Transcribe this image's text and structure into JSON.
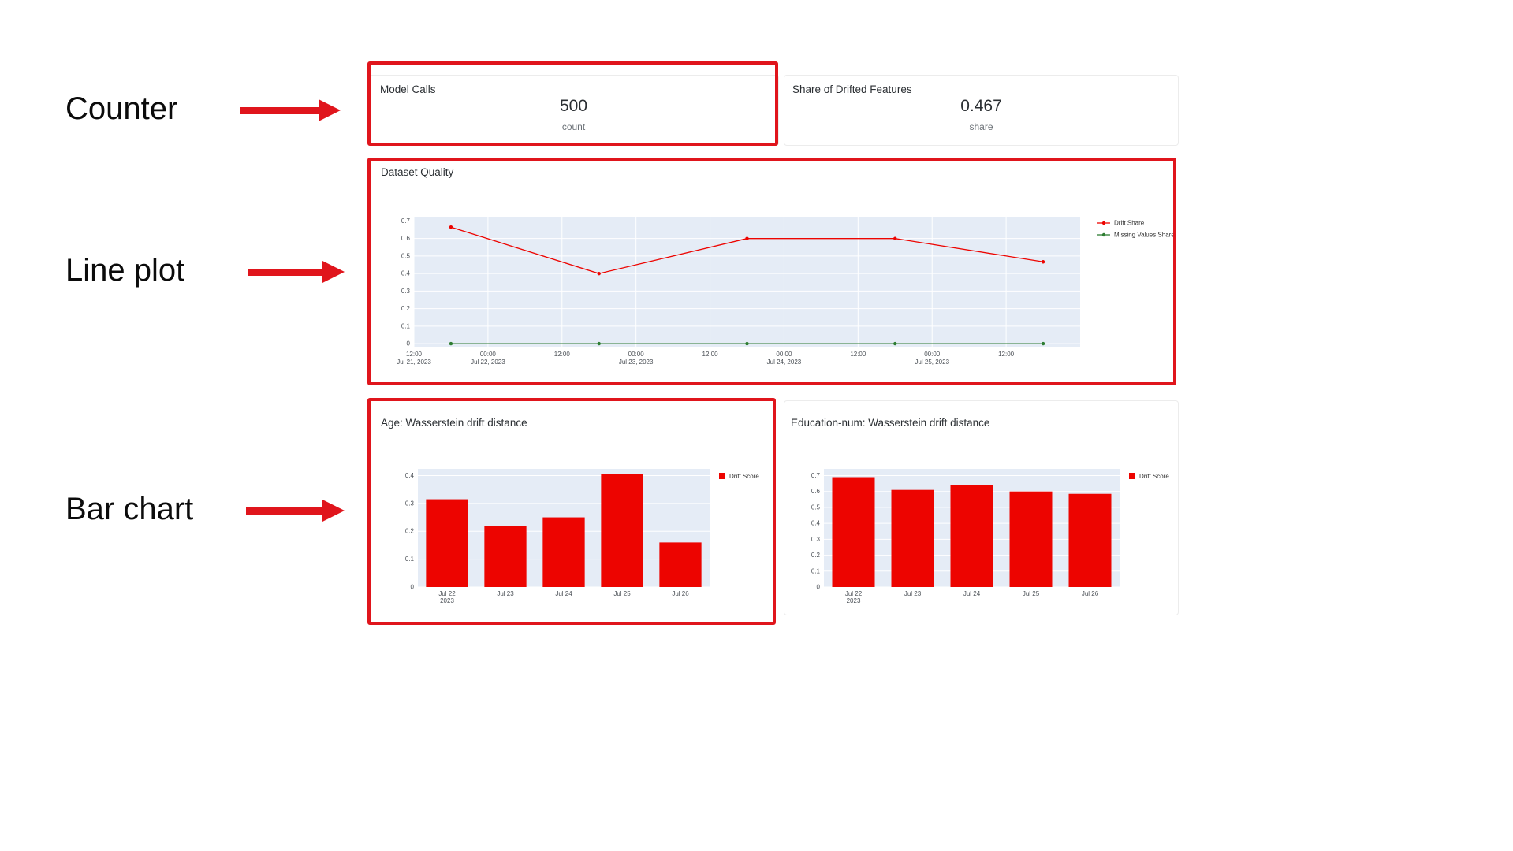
{
  "annotations": {
    "color": "#e0151c",
    "labels": [
      {
        "text": "Counter"
      },
      {
        "text": "Line plot"
      },
      {
        "text": "Bar chart"
      }
    ]
  },
  "counters": [
    {
      "title": "Model Calls",
      "value": "500",
      "unit": "count"
    },
    {
      "title": "Share of Drifted Features",
      "value": "0.467",
      "unit": "share"
    }
  ],
  "chart_data": [
    {
      "type": "line",
      "title": "Dataset Quality",
      "plot_bg": "#e5ecf6",
      "grid": true,
      "legend_position": "right",
      "x_range": [
        0,
        9
      ],
      "x_tick_positions": [
        0,
        1,
        2,
        3,
        4,
        5,
        6,
        7,
        8
      ],
      "x_tick_labels": [
        "12:00|Jul 21, 2023",
        "00:00|Jul 22, 2023",
        "12:00",
        "00:00|Jul 23, 2023",
        "12:00",
        "00:00|Jul 24, 2023",
        "12:00",
        "00:00|Jul 25, 2023",
        "12:00"
      ],
      "y_ticks": [
        0,
        0.1,
        0.2,
        0.3,
        0.4,
        0.5,
        0.6,
        0.7
      ],
      "ylim": [
        0,
        0.7
      ],
      "series": [
        {
          "name": "Drift Share",
          "color": "#ed0400",
          "x": [
            0.5,
            2.5,
            4.5,
            6.5,
            8.5
          ],
          "values": [
            0.665,
            0.4,
            0.6,
            0.6,
            0.467
          ]
        },
        {
          "name": "Missing Values Share",
          "color": "#2e7d32",
          "x": [
            0.5,
            2.5,
            4.5,
            6.5,
            8.5
          ],
          "values": [
            0,
            0,
            0,
            0,
            0
          ]
        }
      ]
    },
    {
      "type": "bar",
      "title": "Age: Wasserstein drift distance",
      "plot_bg": "#e5ecf6",
      "grid": true,
      "legend_position": "right",
      "categories": [
        "Jul 22|2023",
        "Jul 23",
        "Jul 24",
        "Jul 25",
        "Jul 26"
      ],
      "values": [
        0.315,
        0.22,
        0.25,
        0.405,
        0.16
      ],
      "series_name": "Drift Score",
      "bar_color": "#ed0400",
      "y_ticks": [
        0,
        0.1,
        0.2,
        0.3,
        0.4
      ],
      "ylim": [
        0,
        0.4
      ]
    },
    {
      "type": "bar",
      "title": "Education-num: Wasserstein drift distance",
      "plot_bg": "#e5ecf6",
      "grid": true,
      "legend_position": "right",
      "categories": [
        "Jul 22|2023",
        "Jul 23",
        "Jul 24",
        "Jul 25",
        "Jul 26"
      ],
      "values": [
        0.69,
        0.61,
        0.64,
        0.6,
        0.585
      ],
      "series_name": "Drift Score",
      "bar_color": "#ed0400",
      "y_ticks": [
        0,
        0.1,
        0.2,
        0.3,
        0.4,
        0.5,
        0.6,
        0.7
      ],
      "ylim": [
        0,
        0.7
      ]
    }
  ]
}
